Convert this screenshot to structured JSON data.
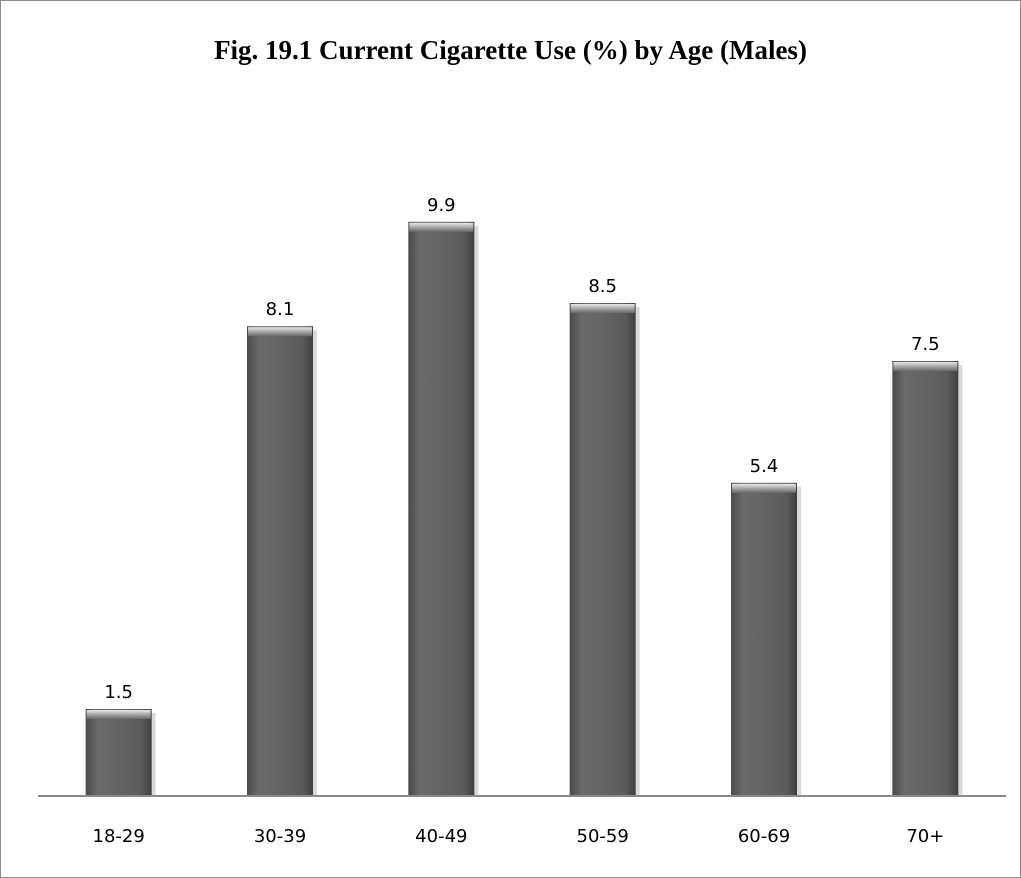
{
  "chart_data": {
    "type": "bar",
    "title": "Fig. 19.1 Current Cigarette Use (%) by Age (Males)",
    "xlabel": "",
    "ylabel": "",
    "categories": [
      "18-29",
      "30-39",
      "40-49",
      "50-59",
      "60-69",
      "70+"
    ],
    "values": [
      1.5,
      8.1,
      9.9,
      8.5,
      5.4,
      7.5
    ],
    "value_labels": [
      "1.5",
      "8.1",
      "9.9",
      "8.5",
      "5.4",
      "7.5"
    ],
    "ylim": [
      0,
      11
    ],
    "grid": false,
    "legend": "none",
    "bar_color": "#5f5f5f"
  }
}
